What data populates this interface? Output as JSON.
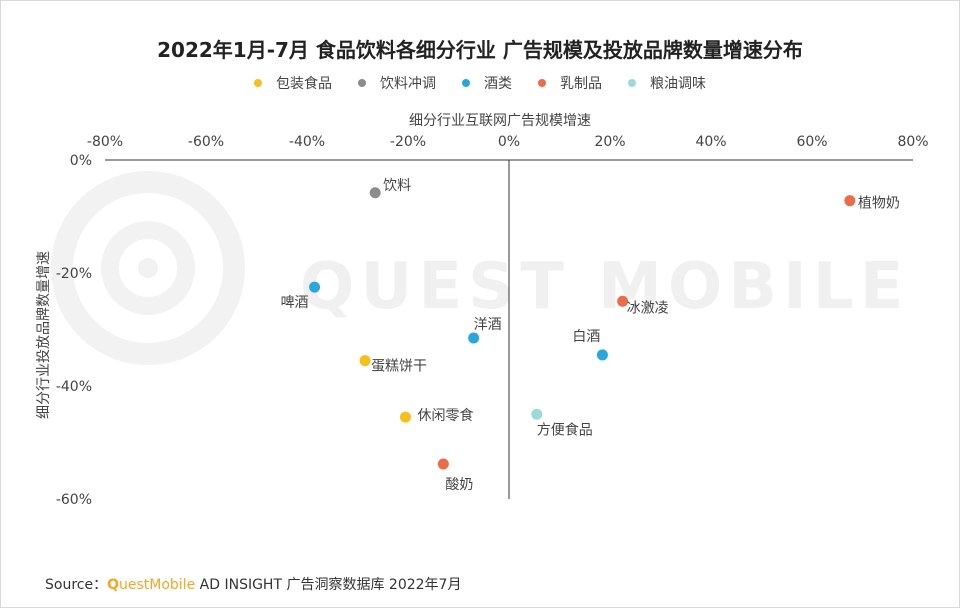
{
  "title": "2022年1月-7月 食品饮料各细分行业 广告规模及投放品牌数量增速分布",
  "watermark": "QUEST MOBILE",
  "source": {
    "prefix": "Source：",
    "brand_q": "Q",
    "brand_rest": "uestMobile",
    "suffix": " AD INSIGHT 广告洞察数据库 2022年7月"
  },
  "chart_data": {
    "type": "scatter",
    "title": "2022年1月-7月 食品饮料各细分行业 广告规模及投放品牌数量增速分布",
    "xlabel": "细分行业互联网广告规模增速",
    "ylabel": "细分行业投放品牌数量增速",
    "xlim": [
      -80,
      80
    ],
    "ylim": [
      -60,
      0
    ],
    "x_ticks": [
      "-80%",
      "-60%",
      "-40%",
      "-20%",
      "0%",
      "20%",
      "40%",
      "60%",
      "80%"
    ],
    "x_tick_values": [
      -80,
      -60,
      -40,
      -20,
      0,
      20,
      40,
      60,
      80
    ],
    "y_ticks": [
      "0%",
      "-20%",
      "-40%",
      "-60%"
    ],
    "y_tick_values": [
      0,
      -20,
      -40,
      -60
    ],
    "legend_position": "top",
    "grid": false,
    "series": [
      {
        "name": "包装食品",
        "color": "#f5c01a",
        "points": [
          {
            "label": "蛋糕饼干",
            "x": -28.5,
            "y": -35.5
          },
          {
            "label": "休闲零食",
            "x": -20.5,
            "y": -45.5
          }
        ]
      },
      {
        "name": "饮料冲调",
        "color": "#8c8c8c",
        "points": [
          {
            "label": "饮料",
            "x": -26.5,
            "y": -5.8
          }
        ]
      },
      {
        "name": "酒类",
        "color": "#2aa6dc",
        "points": [
          {
            "label": "啤酒",
            "x": -38.5,
            "y": -22.5
          },
          {
            "label": "洋酒",
            "x": -7.0,
            "y": -31.5
          },
          {
            "label": "白酒",
            "x": 18.5,
            "y": -34.5
          }
        ]
      },
      {
        "name": "乳制品",
        "color": "#ec6b48",
        "points": [
          {
            "label": "植物奶",
            "x": 67.5,
            "y": -7.2
          },
          {
            "label": "冰激凌",
            "x": 22.5,
            "y": -25.0
          },
          {
            "label": "酸奶",
            "x": -13.0,
            "y": -53.8
          }
        ]
      },
      {
        "name": "粮油调味",
        "color": "#9ed9d9",
        "points": [
          {
            "label": "方便食品",
            "x": 5.5,
            "y": -45.0
          }
        ]
      }
    ]
  }
}
